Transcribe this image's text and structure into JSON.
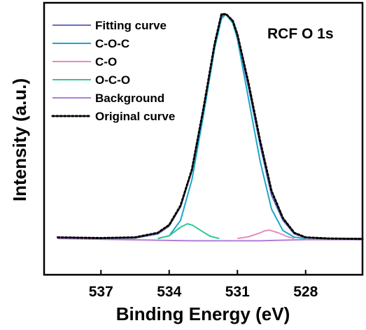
{
  "chart_data": {
    "type": "line",
    "annotation": "RCF O 1s",
    "xlabel": "Binding Energy (eV)",
    "ylabel": "Intensity (a.u.)",
    "xlim": [
      539.5,
      525.5
    ],
    "ylim": [
      -0.15,
      1.05
    ],
    "x_reversed": true,
    "x_ticks": [
      537,
      534,
      531,
      528
    ],
    "legend_position": "top-left",
    "series": [
      {
        "name": "Fitting curve",
        "color": "#6a6fc0",
        "style": "solid",
        "x": [
          538.9,
          537,
          535.5,
          534.5,
          534,
          533.5,
          533,
          532.5,
          532,
          531.7,
          531.5,
          531.2,
          531,
          530.5,
          530,
          529.5,
          529,
          528.5,
          528,
          527,
          525.5
        ],
        "y": [
          0.01,
          0.01,
          0.012,
          0.03,
          0.065,
          0.15,
          0.31,
          0.57,
          0.86,
          0.99,
          1.0,
          0.97,
          0.9,
          0.67,
          0.42,
          0.2,
          0.09,
          0.03,
          0.013,
          0.01,
          0.01
        ]
      },
      {
        "name": "C-O-C",
        "color": "#1aa7c9",
        "style": "solid",
        "x": [
          534.5,
          534,
          533.5,
          533,
          532.5,
          532,
          531.7,
          531.5,
          531.2,
          531,
          530.5,
          530,
          529.5,
          529,
          528.5,
          528
        ],
        "y": [
          0.01,
          0.022,
          0.09,
          0.27,
          0.55,
          0.85,
          0.98,
          1.0,
          0.96,
          0.89,
          0.62,
          0.35,
          0.14,
          0.045,
          0.016,
          0.01
        ]
      },
      {
        "name": "C-O",
        "color": "#e58cc4",
        "style": "solid",
        "x": [
          531,
          530.5,
          530,
          529.8,
          529.6,
          529.2,
          528.8,
          528.5
        ],
        "y": [
          0.01,
          0.018,
          0.035,
          0.044,
          0.047,
          0.035,
          0.018,
          0.01
        ]
      },
      {
        "name": "O-C-O",
        "color": "#2ec995",
        "style": "solid",
        "x": [
          534.5,
          534,
          533.5,
          533.2,
          533,
          532.6,
          532.2,
          531.8
        ],
        "y": [
          0.01,
          0.022,
          0.06,
          0.075,
          0.07,
          0.045,
          0.02,
          0.01
        ]
      },
      {
        "name": "Background",
        "color": "#b07ed4",
        "style": "solid",
        "x": [
          538.9,
          536,
          533,
          530,
          528,
          525.5
        ],
        "y": [
          0.01,
          0.005,
          0.0,
          0.0,
          0.005,
          0.005
        ]
      },
      {
        "name": "Original curve",
        "color": "#000000",
        "style": "dotted",
        "x": [
          538.9,
          537,
          535.5,
          534.5,
          534,
          533.5,
          533,
          532.5,
          532,
          531.7,
          531.5,
          531.2,
          531,
          530.5,
          530,
          529.5,
          529,
          528.5,
          528,
          527,
          525.5
        ],
        "y": [
          0.015,
          0.012,
          0.015,
          0.035,
          0.07,
          0.155,
          0.315,
          0.58,
          0.87,
          1.0,
          1.0,
          0.97,
          0.91,
          0.69,
          0.44,
          0.22,
          0.1,
          0.035,
          0.015,
          0.01,
          0.008
        ]
      }
    ]
  }
}
